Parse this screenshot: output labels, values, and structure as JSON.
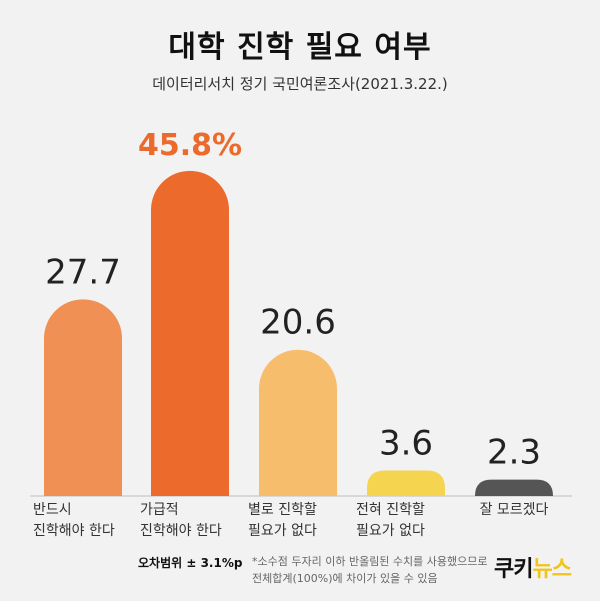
{
  "title": "대학 진학 필요 여부",
  "subtitle": "데이터리서치 정기 국민여론조사(2021.3.22.)",
  "chart_data": {
    "type": "bar",
    "categories": [
      [
        "반드시",
        "진학해야 한다"
      ],
      [
        "가급적",
        "진학해야 한다"
      ],
      [
        "별로 진학할",
        "필요가 없다"
      ],
      [
        "전혀 진학할",
        "필요가 없다"
      ],
      [
        "잘 모르겠다"
      ]
    ],
    "values": [
      27.7,
      45.8,
      20.6,
      3.6,
      2.3
    ],
    "value_labels": [
      "27.7",
      "45.8%",
      "20.6",
      "3.6",
      "2.3"
    ],
    "colors": [
      "#f09055",
      "#eb6a2c",
      "#f6bd6d",
      "#f5d550",
      "#555555"
    ],
    "value_label_colors": [
      "#222222",
      "#eb6a2c",
      "#222222",
      "#222222",
      "#222222"
    ],
    "ylim": [
      0,
      50
    ]
  },
  "footer": {
    "margin_of_error": "오차범위 ± 3.1%p",
    "note_lines": [
      "*소수점 두자리 이하 반올림된 수치를 사용했으므로",
      "전체합계(100%)에 차이가 있을 수 있음"
    ],
    "logo_part1": "쿠키",
    "logo_part2": "뉴스"
  }
}
